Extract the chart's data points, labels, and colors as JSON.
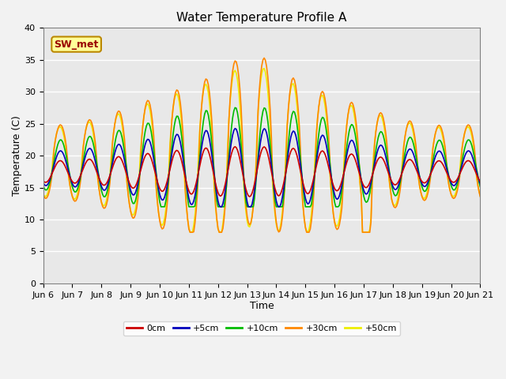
{
  "title": "Water Temperature Profile A",
  "xlabel": "Time",
  "ylabel": "Temperature (C)",
  "ylim": [
    0,
    40
  ],
  "annotation": "SW_met",
  "bg_color": "#e8e8e8",
  "fig_bg_color": "#f2f2f2",
  "colors": [
    "#cc0000",
    "#0000bb",
    "#00bb00",
    "#ff8800",
    "#eeee00"
  ],
  "labels": [
    "0cm",
    "+5cm",
    "+10cm",
    "+30cm",
    "+50cm"
  ],
  "xtick_labels": [
    "Jun 6",
    "Jun 7",
    "Jun 8",
    "Jun 9",
    "Jun 10",
    "Jun 11",
    "Jun 12",
    "Jun 13",
    "Jun 14",
    "Jun 15",
    "Jun 16",
    "Jun 17",
    "Jun 18",
    "Jun 19",
    "Jun 20",
    "Jun 21"
  ],
  "title_fontsize": 11,
  "axis_label_fontsize": 9,
  "tick_fontsize": 8,
  "legend_fontsize": 8,
  "lw": 1.2
}
